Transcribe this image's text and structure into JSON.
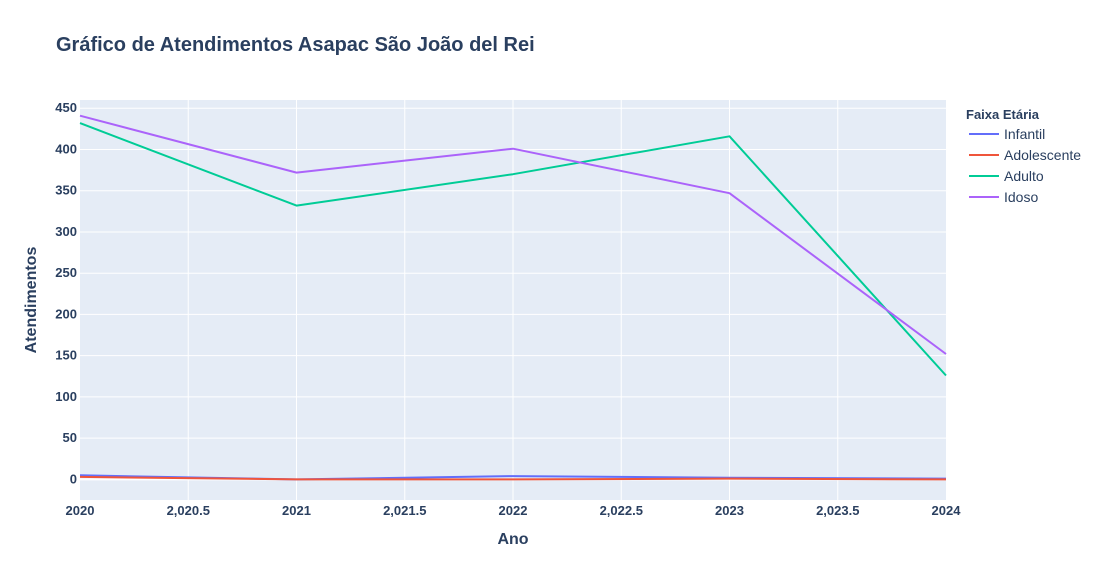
{
  "chart_data": {
    "type": "line",
    "title": "Gráfico de Atendimentos Asapac São João del Rei",
    "xlabel": "Ano",
    "ylabel": "Atendimentos",
    "x": [
      2020,
      2021,
      2022,
      2023,
      2024
    ],
    "xlim": [
      2020,
      2024
    ],
    "ylim": [
      -25,
      460
    ],
    "x_ticks": [
      "2020",
      "2,020.5",
      "2021",
      "2,021.5",
      "2022",
      "2,022.5",
      "2023",
      "2,023.5",
      "2024"
    ],
    "y_ticks": [
      "0",
      "50",
      "100",
      "150",
      "200",
      "250",
      "300",
      "350",
      "400",
      "450"
    ],
    "grid": true,
    "legend_title": "Faixa Etária",
    "legend_position": "right",
    "series": [
      {
        "name": "Infantil",
        "color": "#636efa",
        "values": [
          5,
          0,
          4,
          2,
          1
        ]
      },
      {
        "name": "Adolescente",
        "color": "#ef553b",
        "values": [
          3,
          0,
          0,
          1,
          0
        ]
      },
      {
        "name": "Adulto",
        "color": "#00cc96",
        "values": [
          432,
          332,
          370,
          416,
          126
        ]
      },
      {
        "name": "Idoso",
        "color": "#ab63fa",
        "values": [
          441,
          372,
          401,
          347,
          152
        ]
      }
    ],
    "plot_background": "#e5ecf6"
  }
}
